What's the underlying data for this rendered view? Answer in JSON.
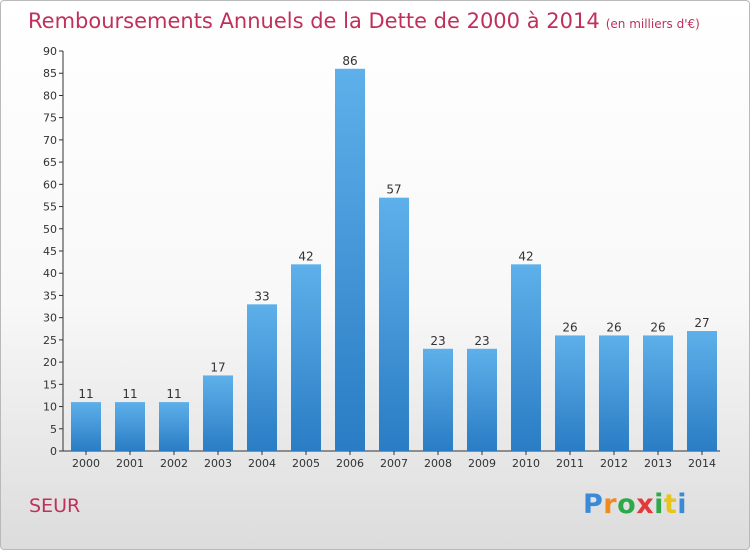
{
  "title": "Remboursements Annuels de la Dette de 2000 à 2014",
  "subtitle": "(en milliers d'€)",
  "commune": "SEUR",
  "logo": {
    "letters": [
      "P",
      "r",
      "o",
      "x",
      "i",
      "t",
      "i"
    ],
    "colors": [
      "#3a8ad8",
      "#f08a1c",
      "#2fa84a",
      "#e23a3a",
      "#2fa84a",
      "#e8c51a",
      "#3a8ad8"
    ]
  },
  "colors": {
    "bar": "#3c8fd6",
    "title": "#c0305c"
  },
  "chart_data": {
    "type": "bar",
    "categories": [
      "2000",
      "2001",
      "2002",
      "2003",
      "2004",
      "2005",
      "2006",
      "2007",
      "2008",
      "2009",
      "2010",
      "2011",
      "2012",
      "2013",
      "2014"
    ],
    "values": [
      11,
      11,
      11,
      17,
      33,
      42,
      86,
      57,
      23,
      23,
      42,
      26,
      26,
      26,
      27
    ],
    "title": "Remboursements Annuels de la Dette de 2000 à 2014",
    "ylim": [
      0,
      90
    ],
    "yticks": [
      0,
      5,
      10,
      15,
      20,
      25,
      30,
      35,
      40,
      45,
      50,
      55,
      60,
      65,
      70,
      75,
      80,
      85,
      90
    ],
    "grid": false,
    "data_labels": true
  }
}
